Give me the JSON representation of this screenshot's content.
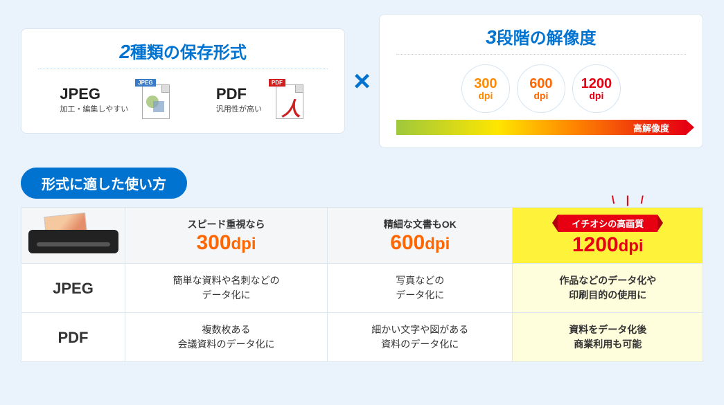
{
  "top": {
    "left_card": {
      "title_num": "2",
      "title_text": "種類の保存形式",
      "jpeg": {
        "label": "JPEG",
        "sub": "加工・編集しやすい",
        "tag": "JPEG"
      },
      "pdf": {
        "label": "PDF",
        "sub": "汎用性が高い",
        "tag": "PDF"
      }
    },
    "cross": "×",
    "right_card": {
      "title_num": "3",
      "title_text": "段階の解像度",
      "dpi": [
        {
          "n": "300",
          "u": "dpi",
          "cls": "c300"
        },
        {
          "n": "600",
          "u": "dpi",
          "cls": "c600"
        },
        {
          "n": "1200",
          "u": "dpi",
          "cls": "c1200"
        }
      ],
      "bar_label": "高解像度"
    }
  },
  "section_title": "形式に適した使い方",
  "table": {
    "ticks": "\\  |  /",
    "cols": [
      {
        "sub": "スピード重視なら",
        "dpi": "300",
        "unit": "dpi",
        "color": "o",
        "hl": false
      },
      {
        "sub": "精細な文書もOK",
        "dpi": "600",
        "unit": "dpi",
        "color": "o",
        "hl": false
      },
      {
        "ribbon": "イチオシの高画質",
        "dpi": "1200",
        "unit": "dpi",
        "color": "r",
        "hl": true
      }
    ],
    "rows": [
      {
        "head": "JPEG",
        "cells": [
          "簡単な資料や名刺などの\nデータ化に",
          "写真などの\nデータ化に",
          "作品などのデータ化や\n印刷目的の使用に"
        ]
      },
      {
        "head": "PDF",
        "cells": [
          "複数枚ある\n会議資料のデータ化に",
          "細かい文字や図がある\n資料のデータ化に",
          "資料をデータ化後\n商業利用も可能"
        ]
      }
    ]
  },
  "colors": {
    "primary_blue": "#0073d1",
    "orange": "#ff6600",
    "red": "#e60012",
    "highlight_bg": "#fff23a",
    "highlight_cell": "#fffedc",
    "page_bg": "#eaf3fb"
  }
}
